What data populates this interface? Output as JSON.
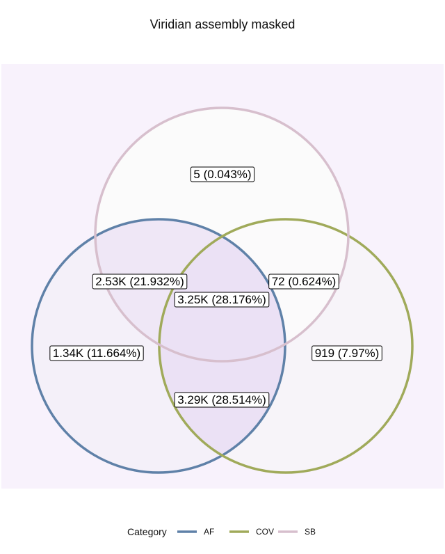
{
  "chart_data": {
    "type": "venn",
    "title": "Viridian assembly masked",
    "legend": {
      "title": "Category",
      "placement": "bottom",
      "items": [
        "AF",
        "COV",
        "SB"
      ]
    },
    "sets": [
      {
        "name": "AF",
        "color": "#5f81a8"
      },
      {
        "name": "COV",
        "color": "#a0aa5a"
      },
      {
        "name": "SB",
        "color": "#d7bfcd"
      }
    ],
    "regions": [
      {
        "sets": [
          "SB"
        ],
        "count": 5,
        "label": "5 (0.043%)"
      },
      {
        "sets": [
          "AF",
          "SB"
        ],
        "count": 2530,
        "label": "2.53K (21.932%)"
      },
      {
        "sets": [
          "COV",
          "SB"
        ],
        "count": 72,
        "label": "72 (0.624%)"
      },
      {
        "sets": [
          "AF",
          "COV",
          "SB"
        ],
        "count": 3250,
        "label": "3.25K (28.176%)"
      },
      {
        "sets": [
          "AF"
        ],
        "count": 1340,
        "label": "1.34K (11.664%)"
      },
      {
        "sets": [
          "COV"
        ],
        "count": 919,
        "label": "919 (7.97%)"
      },
      {
        "sets": [
          "AF",
          "COV"
        ],
        "count": 3290,
        "label": "3.29K (28.514%)"
      }
    ],
    "colors": {
      "panel_background": "#f8f2fc",
      "fill_low": "#fbfbfb",
      "fill_high": "#ebe1f5"
    }
  }
}
